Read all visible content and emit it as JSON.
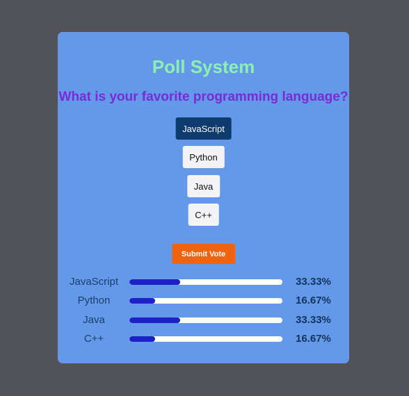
{
  "poll": {
    "title": "Poll System",
    "question": "What is your favorite programming language?",
    "options": [
      {
        "label": "JavaScript",
        "selected": true
      },
      {
        "label": "Python",
        "selected": false
      },
      {
        "label": "Java",
        "selected": false
      },
      {
        "label": "C++",
        "selected": false
      }
    ],
    "submit_label": "Submit Vote"
  },
  "results": [
    {
      "label": "JavaScript",
      "percent_text": "33.33%",
      "fraction": 0.3333
    },
    {
      "label": "Python",
      "percent_text": "16.67%",
      "fraction": 0.1667
    },
    {
      "label": "Java",
      "percent_text": "33.33%",
      "fraction": 0.3333
    },
    {
      "label": "C++",
      "percent_text": "16.67%",
      "fraction": 0.1667
    }
  ],
  "colors": {
    "background": "#52525a",
    "card": "#6399e8",
    "title": "#8ef0b0",
    "question": "#7a2bd6",
    "selected_option": "#0d3b6e",
    "submit": "#f0640f",
    "bar_fill": "#1d1fc8"
  }
}
